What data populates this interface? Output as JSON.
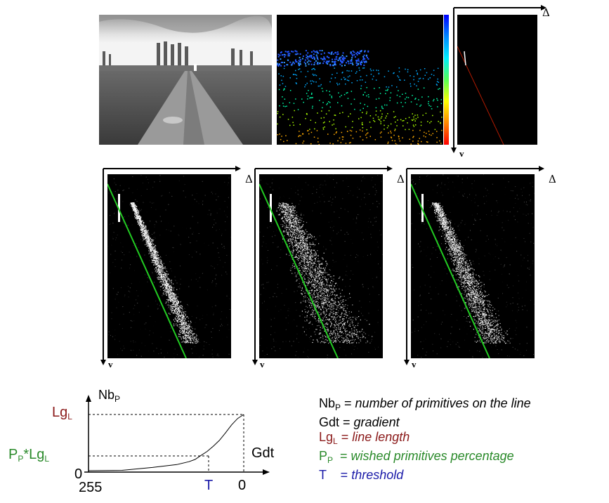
{
  "top_row": {
    "photo": {
      "description_icon": "road-photo"
    },
    "disparity": {
      "colorbar_colors": [
        "#0000ff",
        "#00aaff",
        "#00ffaa",
        "#aaff00",
        "#ffaa00",
        "#ff0000"
      ]
    },
    "vdisparity": {
      "axis_x_label": "Δ",
      "axis_y_label": "v",
      "line_color": "#cc2200"
    }
  },
  "middle_row": {
    "panels": [
      {
        "axis_x_label": "Δ",
        "axis_y_label": "v",
        "line_color": "#22cc22"
      },
      {
        "axis_x_label": "Δ",
        "axis_y_label": "v",
        "line_color": "#22cc22"
      },
      {
        "axis_x_label": "Δ",
        "axis_y_label": "v",
        "line_color": "#22cc22"
      }
    ]
  },
  "chart_data": {
    "type": "line",
    "y_label_main": "Nb",
    "y_label_sub": "P",
    "x_label": "Gdt",
    "y_marks": {
      "top": {
        "main": "Lg",
        "sub": "L",
        "color": "#8b1a1a"
      },
      "mid": {
        "main1": "P",
        "sub1": "P",
        "mid": "*Lg",
        "sub2": "L",
        "color": "#2a8a2a"
      },
      "zero": "0"
    },
    "x_marks": {
      "left": "255",
      "threshold": "T",
      "threshold_color": "#1a1aa8",
      "right": "0"
    },
    "curve": {
      "x": [
        255,
        200,
        150,
        110,
        90,
        80,
        70,
        60,
        50,
        40,
        30,
        20,
        10,
        0
      ],
      "y": [
        0.0,
        0.03,
        0.08,
        0.13,
        0.18,
        0.22,
        0.29,
        0.36,
        0.45,
        0.55,
        0.68,
        0.82,
        0.93,
        1.0
      ]
    }
  },
  "legend": {
    "rows": [
      {
        "key_main": "Nb",
        "key_sub": "P",
        "eq": " = ",
        "desc": "number of primitives on the line",
        "color": "#000000",
        "desc_italic": true
      },
      {
        "key_main": "Gdt",
        "key_sub": "",
        "eq": " = ",
        "desc": "gradient",
        "color": "#000000",
        "desc_italic": true
      },
      {
        "key_main": "Lg",
        "key_sub": "L",
        "eq": " = ",
        "desc": "line length",
        "color": "#8b1a1a",
        "desc_italic": true
      },
      {
        "key_main": "P",
        "key_sub": "P",
        "eq": "  = ",
        "desc": "wished primitives percentage",
        "color": "#2a8a2a",
        "desc_italic": true
      },
      {
        "key_main": "T",
        "key_sub": "",
        "eq": "    = ",
        "desc": "threshold",
        "color": "#1a1aa8",
        "desc_italic": true
      }
    ]
  }
}
